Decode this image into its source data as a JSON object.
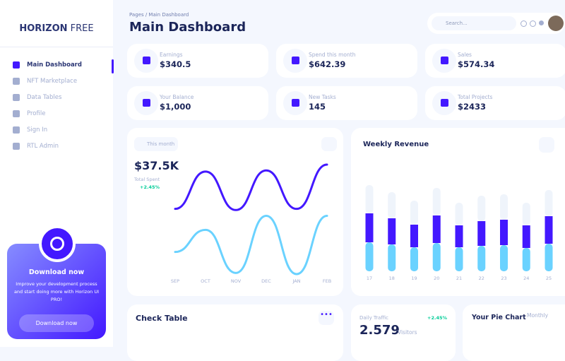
{
  "sidebar": {
    "brand_bold": "HORIZON",
    "brand_light": "FREE",
    "nav": [
      "Main Dashboard",
      "NFT Marketplace",
      "Data Tables",
      "Profile",
      "Sign In",
      "RTL Admin"
    ],
    "promo": {
      "title": "Download now",
      "text": "Improve your development process and start doing more with Horizon UI PRO!",
      "button": "Download now"
    }
  },
  "header": {
    "breadcrumb": "Pages / Main Dashboard",
    "title": "Main Dashboard",
    "search": "Search..."
  },
  "stats": [
    {
      "label": "Earnings",
      "value": "$340.5"
    },
    {
      "label": "Spend this month",
      "value": "$642.39"
    },
    {
      "label": "Sales",
      "value": "$574.34"
    },
    {
      "label": "Your Balance",
      "value": "$1,000"
    },
    {
      "label": "New Tasks",
      "value": "145"
    },
    {
      "label": "Total Projects",
      "value": "$2433"
    }
  ],
  "spent_card": {
    "button": "This month",
    "value": "$37.5K",
    "label": "Total Spent",
    "change": "+2.45%"
  },
  "chart_data": [
    {
      "type": "line",
      "categories": [
        "SEP",
        "OCT",
        "NOV",
        "DEC",
        "JAN",
        "FEB"
      ],
      "series": [
        {
          "color": "#4318ff",
          "values": [
            59,
            91,
            58,
            92,
            59,
            97
          ]
        },
        {
          "color": "#6ad2ff",
          "values": [
            22,
            41,
            4,
            53,
            3,
            53
          ]
        }
      ]
    },
    {
      "type": "bar",
      "stacked": true,
      "title": "Weekly Revenue",
      "categories": [
        "17",
        "18",
        "19",
        "20",
        "21",
        "22",
        "23",
        "24",
        "25"
      ],
      "series": [
        {
          "color": "#6ad2ff",
          "values": [
            41,
            38,
            34,
            40,
            34,
            36,
            37,
            33,
            39
          ]
        },
        {
          "color": "#4318ff",
          "values": [
            41,
            37,
            32,
            39,
            31,
            35,
            36,
            32,
            39
          ]
        },
        {
          "color": "#eff4fb",
          "values": [
            40,
            37,
            34,
            39,
            32,
            36,
            36,
            32,
            37
          ]
        }
      ]
    }
  ],
  "check_table": {
    "title": "Check Table"
  },
  "traffic": {
    "label": "Daily Traffic",
    "change": "+2.45%",
    "value": "2.579",
    "unit": "Visitors"
  },
  "pie_card": {
    "title": "Your Pie Chart",
    "select": "Monthly"
  }
}
